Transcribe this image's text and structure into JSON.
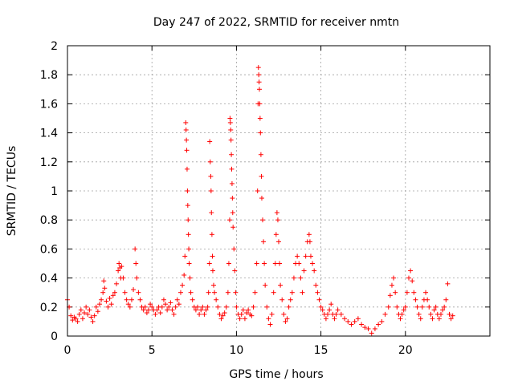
{
  "chart_data": {
    "type": "scatter",
    "title": "Day 247 of 2022, SRMTID for receiver nmtn",
    "xlabel": "GPS time / hours",
    "ylabel": "SRMTID / TECUs",
    "xlim": [
      0,
      25
    ],
    "ylim": [
      0,
      2
    ],
    "xticks": [
      0,
      5,
      10,
      15,
      20
    ],
    "xtick_labels": [
      "0",
      "5",
      "10",
      "15",
      "20"
    ],
    "yticks": [
      0,
      0.2,
      0.4,
      0.6,
      0.8,
      1,
      1.2,
      1.4,
      1.6,
      1.8,
      2
    ],
    "ytick_labels": [
      "0",
      "0.2",
      "0.4",
      "0.6",
      "0.8",
      "1",
      "1.2",
      "1.4",
      "1.6",
      "1.8",
      "2"
    ],
    "grid": true,
    "marker": "+",
    "color": "#ff0000",
    "series": [
      {
        "name": "SRMTID",
        "points": [
          [
            0.0,
            0.25
          ],
          [
            0.1,
            0.2
          ],
          [
            0.2,
            0.14
          ],
          [
            0.3,
            0.11
          ],
          [
            0.4,
            0.13
          ],
          [
            0.5,
            0.12
          ],
          [
            0.6,
            0.1
          ],
          [
            0.7,
            0.15
          ],
          [
            0.8,
            0.18
          ],
          [
            0.9,
            0.12
          ],
          [
            1.0,
            0.16
          ],
          [
            1.1,
            0.2
          ],
          [
            1.2,
            0.15
          ],
          [
            1.3,
            0.18
          ],
          [
            1.4,
            0.13
          ],
          [
            1.5,
            0.1
          ],
          [
            1.6,
            0.14
          ],
          [
            1.7,
            0.2
          ],
          [
            1.8,
            0.17
          ],
          [
            1.9,
            0.22
          ],
          [
            2.0,
            0.25
          ],
          [
            2.1,
            0.3
          ],
          [
            2.15,
            0.38
          ],
          [
            2.2,
            0.33
          ],
          [
            2.3,
            0.24
          ],
          [
            2.4,
            0.2
          ],
          [
            2.5,
            0.26
          ],
          [
            2.6,
            0.22
          ],
          [
            2.7,
            0.28
          ],
          [
            2.8,
            0.3
          ],
          [
            2.9,
            0.36
          ],
          [
            3.0,
            0.45
          ],
          [
            3.05,
            0.5
          ],
          [
            3.1,
            0.47
          ],
          [
            3.15,
            0.4
          ],
          [
            3.2,
            0.48
          ],
          [
            3.3,
            0.4
          ],
          [
            3.4,
            0.3
          ],
          [
            3.5,
            0.25
          ],
          [
            3.6,
            0.22
          ],
          [
            3.7,
            0.2
          ],
          [
            3.8,
            0.25
          ],
          [
            3.9,
            0.32
          ],
          [
            4.0,
            0.6
          ],
          [
            4.05,
            0.5
          ],
          [
            4.1,
            0.4
          ],
          [
            4.2,
            0.3
          ],
          [
            4.3,
            0.25
          ],
          [
            4.4,
            0.2
          ],
          [
            4.5,
            0.18
          ],
          [
            4.6,
            0.2
          ],
          [
            4.7,
            0.16
          ],
          [
            4.8,
            0.18
          ],
          [
            4.9,
            0.22
          ],
          [
            5.0,
            0.2
          ],
          [
            5.1,
            0.18
          ],
          [
            5.2,
            0.15
          ],
          [
            5.3,
            0.18
          ],
          [
            5.4,
            0.2
          ],
          [
            5.5,
            0.16
          ],
          [
            5.6,
            0.2
          ],
          [
            5.7,
            0.25
          ],
          [
            5.8,
            0.22
          ],
          [
            5.9,
            0.18
          ],
          [
            6.0,
            0.2
          ],
          [
            6.1,
            0.23
          ],
          [
            6.2,
            0.18
          ],
          [
            6.3,
            0.15
          ],
          [
            6.4,
            0.2
          ],
          [
            6.5,
            0.25
          ],
          [
            6.6,
            0.22
          ],
          [
            6.7,
            0.3
          ],
          [
            6.8,
            0.35
          ],
          [
            6.9,
            0.42
          ],
          [
            6.95,
            0.55
          ],
          [
            7.0,
            1.47
          ],
          [
            7.02,
            1.42
          ],
          [
            7.04,
            1.35
          ],
          [
            7.06,
            1.28
          ],
          [
            7.08,
            1.15
          ],
          [
            7.1,
            1.0
          ],
          [
            7.12,
            0.9
          ],
          [
            7.14,
            0.8
          ],
          [
            7.16,
            0.7
          ],
          [
            7.18,
            0.6
          ],
          [
            7.2,
            0.5
          ],
          [
            7.25,
            0.4
          ],
          [
            7.3,
            0.3
          ],
          [
            7.4,
            0.25
          ],
          [
            7.5,
            0.2
          ],
          [
            7.6,
            0.18
          ],
          [
            7.7,
            0.2
          ],
          [
            7.8,
            0.15
          ],
          [
            7.9,
            0.18
          ],
          [
            8.0,
            0.2
          ],
          [
            8.1,
            0.15
          ],
          [
            8.2,
            0.18
          ],
          [
            8.3,
            0.2
          ],
          [
            8.35,
            0.3
          ],
          [
            8.4,
            0.5
          ],
          [
            8.42,
            1.34
          ],
          [
            8.45,
            1.2
          ],
          [
            8.48,
            1.1
          ],
          [
            8.5,
            1.0
          ],
          [
            8.52,
            0.85
          ],
          [
            8.55,
            0.7
          ],
          [
            8.58,
            0.55
          ],
          [
            8.6,
            0.45
          ],
          [
            8.65,
            0.35
          ],
          [
            8.7,
            0.3
          ],
          [
            8.8,
            0.25
          ],
          [
            8.9,
            0.2
          ],
          [
            9.0,
            0.15
          ],
          [
            9.1,
            0.12
          ],
          [
            9.2,
            0.14
          ],
          [
            9.3,
            0.16
          ],
          [
            9.4,
            0.2
          ],
          [
            9.5,
            0.3
          ],
          [
            9.55,
            0.5
          ],
          [
            9.6,
            0.8
          ],
          [
            9.62,
            1.5
          ],
          [
            9.64,
            1.47
          ],
          [
            9.66,
            1.42
          ],
          [
            9.68,
            1.35
          ],
          [
            9.7,
            1.25
          ],
          [
            9.72,
            1.15
          ],
          [
            9.74,
            1.05
          ],
          [
            9.76,
            0.95
          ],
          [
            9.78,
            0.85
          ],
          [
            9.8,
            0.75
          ],
          [
            9.85,
            0.6
          ],
          [
            9.9,
            0.45
          ],
          [
            9.95,
            0.3
          ],
          [
            10.0,
            0.2
          ],
          [
            10.1,
            0.15
          ],
          [
            10.2,
            0.12
          ],
          [
            10.3,
            0.15
          ],
          [
            10.4,
            0.18
          ],
          [
            10.5,
            0.12
          ],
          [
            10.6,
            0.16
          ],
          [
            10.7,
            0.18
          ],
          [
            10.8,
            0.15
          ],
          [
            10.9,
            0.14
          ],
          [
            11.0,
            0.2
          ],
          [
            11.1,
            0.3
          ],
          [
            11.2,
            0.5
          ],
          [
            11.25,
            1.0
          ],
          [
            11.28,
            1.6
          ],
          [
            11.3,
            1.85
          ],
          [
            11.32,
            1.8
          ],
          [
            11.34,
            1.75
          ],
          [
            11.36,
            1.7
          ],
          [
            11.38,
            1.6
          ],
          [
            11.4,
            1.5
          ],
          [
            11.42,
            1.4
          ],
          [
            11.45,
            1.25
          ],
          [
            11.48,
            1.1
          ],
          [
            11.5,
            0.95
          ],
          [
            11.55,
            0.8
          ],
          [
            11.6,
            0.65
          ],
          [
            11.65,
            0.5
          ],
          [
            11.7,
            0.35
          ],
          [
            11.8,
            0.2
          ],
          [
            11.9,
            0.12
          ],
          [
            12.0,
            0.08
          ],
          [
            12.1,
            0.15
          ],
          [
            12.2,
            0.3
          ],
          [
            12.3,
            0.5
          ],
          [
            12.35,
            0.7
          ],
          [
            12.4,
            0.85
          ],
          [
            12.45,
            0.8
          ],
          [
            12.5,
            0.65
          ],
          [
            12.55,
            0.5
          ],
          [
            12.6,
            0.35
          ],
          [
            12.7,
            0.25
          ],
          [
            12.8,
            0.15
          ],
          [
            12.9,
            0.1
          ],
          [
            13.0,
            0.12
          ],
          [
            13.1,
            0.2
          ],
          [
            13.2,
            0.25
          ],
          [
            13.3,
            0.3
          ],
          [
            13.4,
            0.4
          ],
          [
            13.5,
            0.5
          ],
          [
            13.6,
            0.55
          ],
          [
            13.7,
            0.5
          ],
          [
            13.8,
            0.4
          ],
          [
            13.9,
            0.3
          ],
          [
            14.0,
            0.45
          ],
          [
            14.1,
            0.55
          ],
          [
            14.2,
            0.65
          ],
          [
            14.3,
            0.7
          ],
          [
            14.35,
            0.65
          ],
          [
            14.4,
            0.55
          ],
          [
            14.5,
            0.5
          ],
          [
            14.6,
            0.45
          ],
          [
            14.7,
            0.35
          ],
          [
            14.8,
            0.3
          ],
          [
            14.9,
            0.25
          ],
          [
            15.0,
            0.2
          ],
          [
            15.1,
            0.18
          ],
          [
            15.2,
            0.15
          ],
          [
            15.3,
            0.12
          ],
          [
            15.4,
            0.15
          ],
          [
            15.5,
            0.18
          ],
          [
            15.6,
            0.22
          ],
          [
            15.7,
            0.15
          ],
          [
            15.8,
            0.12
          ],
          [
            15.9,
            0.15
          ],
          [
            16.0,
            0.18
          ],
          [
            16.2,
            0.15
          ],
          [
            16.4,
            0.12
          ],
          [
            16.6,
            0.1
          ],
          [
            16.8,
            0.08
          ],
          [
            17.0,
            0.1
          ],
          [
            17.2,
            0.12
          ],
          [
            17.4,
            0.08
          ],
          [
            17.6,
            0.06
          ],
          [
            17.8,
            0.05
          ],
          [
            18.0,
            0.02
          ],
          [
            18.2,
            0.05
          ],
          [
            18.4,
            0.08
          ],
          [
            18.6,
            0.1
          ],
          [
            18.8,
            0.15
          ],
          [
            19.0,
            0.2
          ],
          [
            19.1,
            0.28
          ],
          [
            19.2,
            0.35
          ],
          [
            19.3,
            0.4
          ],
          [
            19.4,
            0.3
          ],
          [
            19.5,
            0.2
          ],
          [
            19.6,
            0.15
          ],
          [
            19.7,
            0.12
          ],
          [
            19.8,
            0.15
          ],
          [
            19.9,
            0.18
          ],
          [
            20.0,
            0.2
          ],
          [
            20.1,
            0.3
          ],
          [
            20.2,
            0.4
          ],
          [
            20.3,
            0.45
          ],
          [
            20.4,
            0.38
          ],
          [
            20.5,
            0.3
          ],
          [
            20.6,
            0.25
          ],
          [
            20.7,
            0.2
          ],
          [
            20.8,
            0.15
          ],
          [
            20.9,
            0.12
          ],
          [
            21.0,
            0.2
          ],
          [
            21.1,
            0.25
          ],
          [
            21.2,
            0.3
          ],
          [
            21.3,
            0.25
          ],
          [
            21.4,
            0.2
          ],
          [
            21.5,
            0.15
          ],
          [
            21.6,
            0.12
          ],
          [
            21.7,
            0.18
          ],
          [
            21.8,
            0.2
          ],
          [
            21.9,
            0.15
          ],
          [
            22.0,
            0.12
          ],
          [
            22.1,
            0.15
          ],
          [
            22.2,
            0.18
          ],
          [
            22.3,
            0.2
          ],
          [
            22.4,
            0.25
          ],
          [
            22.5,
            0.36
          ],
          [
            22.6,
            0.15
          ],
          [
            22.7,
            0.12
          ],
          [
            22.8,
            0.14
          ]
        ]
      }
    ]
  }
}
